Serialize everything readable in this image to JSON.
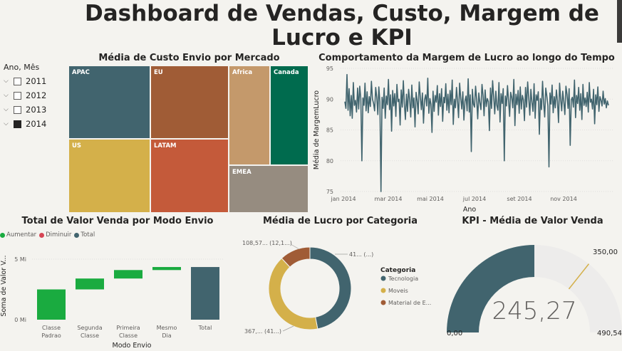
{
  "page_title": "Dashboard de Vendas, Custo, Margem de Lucro e KPI",
  "slicer": {
    "header": "Ano, Mês",
    "items": [
      {
        "label": "2011",
        "checked": false
      },
      {
        "label": "2012",
        "checked": false
      },
      {
        "label": "2013",
        "checked": false
      },
      {
        "label": "2014",
        "checked": true
      }
    ]
  },
  "treemap": {
    "title": "Média de Custo Envio por Mercado",
    "cells": [
      {
        "label": "APAC",
        "color": "#41646e"
      },
      {
        "label": "EU",
        "color": "#a05c36"
      },
      {
        "label": "Africa",
        "color": "#c4996b"
      },
      {
        "label": "Canada",
        "color": "#006b4e"
      },
      {
        "label": "US",
        "color": "#d4b04a"
      },
      {
        "label": "LATAM",
        "color": "#c45a3a"
      },
      {
        "label": "EMEA",
        "color": "#968c80"
      }
    ]
  },
  "line": {
    "title": "Comportamento da Margem de Lucro ao longo do Tempo",
    "ylabel": "Média de MargemLucro",
    "xlabel": "Ano",
    "color": "#41646e"
  },
  "waterfall": {
    "title": "Total de Valor Venda por Modo Envio",
    "ylabel": "Soma de Valor V...",
    "xlabel": "Modo Envio",
    "legend": [
      {
        "label": "Aumentar",
        "color": "#1aab40"
      },
      {
        "label": "Diminuir",
        "color": "#d64554"
      },
      {
        "label": "Total",
        "color": "#41646e"
      }
    ]
  },
  "donut": {
    "title": "Média de Lucro por Categoria",
    "legend_title": "Categoria",
    "label_tecnologia": "41... (...)",
    "label_moveis": "367,... (41...)",
    "label_material": "108,57... (12,1...)"
  },
  "gauge": {
    "title": "KPI - Média de Valor Venda",
    "value_label": "245,27",
    "min_label": "0,00",
    "max_label": "490,54",
    "target_label": "350,00",
    "fill_color": "#41646e",
    "track_color": "#edeceb",
    "target_color": "#d4b04a"
  },
  "chart_data": [
    {
      "type": "treemap",
      "title": "Média de Custo Envio por Mercado",
      "categories": [
        "APAC",
        "EU",
        "Africa",
        "Canada",
        "US",
        "LATAM",
        "EMEA"
      ],
      "values": [
        31,
        31,
        19,
        16,
        31,
        31,
        14
      ]
    },
    {
      "type": "line",
      "title": "Comportamento da Margem de Lucro ao longo do Tempo",
      "xlabel": "Ano",
      "ylabel": "Média de MargemLucro",
      "x_range": [
        "2014-01-01",
        "2014-12-31"
      ],
      "x_ticks": [
        "jan 2014",
        "mar 2014",
        "mai 2014",
        "jul 2014",
        "set 2014",
        "nov 2014"
      ],
      "y_ticks": [
        75,
        80,
        85,
        90,
        95
      ],
      "ylim": [
        75,
        95
      ],
      "series": [
        {
          "values": [
            89.6,
            88.5,
            94.0,
            88.2,
            91.7,
            87.3,
            90.6,
            86.9,
            92.7,
            89.0,
            89.8,
            87.9,
            91.8,
            88.4,
            92.1,
            90.1,
            80.0,
            90.2,
            89.0,
            92.6,
            88.1,
            91.2,
            87.8,
            90.4,
            88.8,
            92.9,
            90.0,
            89.3,
            88.1,
            91.9,
            90.3,
            87.5,
            92.0,
            89.5,
            75.0,
            90.3,
            88.5,
            91.8,
            86.9,
            90.5,
            89.1,
            93.2,
            88.3,
            90.7,
            84.8,
            91.4,
            88.9,
            90.9,
            87.2,
            92.4,
            89.6,
            90.0,
            85.8,
            91.5,
            88.7,
            93.0,
            89.3,
            86.7,
            90.8,
            88.0,
            91.6,
            89.9,
            87.1,
            92.3,
            88.6,
            90.2,
            85.5,
            91.1,
            89.7,
            87.6,
            92.8,
            90.4,
            88.3,
            91.0,
            86.1,
            89.9,
            90.7,
            88.9,
            93.4,
            87.7,
            90.1,
            89.2,
            84.6,
            91.3,
            88.0,
            90.6,
            89.5,
            92.2,
            87.4,
            90.9,
            88.8,
            91.7,
            86.4,
            90.3,
            89.4,
            92.5,
            88.2,
            90.8,
            87.8,
            91.4,
            89.1,
            93.1,
            85.9,
            90.0,
            88.6,
            91.9,
            89.8,
            87.0,
            92.6,
            90.2,
            88.4,
            91.2,
            86.6,
            89.7,
            90.5,
            88.1,
            93.3,
            87.9,
            90.7,
            81.5,
            91.6,
            89.2,
            88.7,
            92.1,
            90.0,
            86.8,
            91.0,
            89.4,
            88.3,
            92.4,
            90.6,
            87.3,
            91.5,
            88.8,
            90.1,
            89.6,
            84.9,
            91.8,
            88.5,
            93.0,
            90.4,
            87.6,
            91.3,
            89.0,
            88.2,
            92.7,
            86.3,
            90.9,
            89.3,
            91.7,
            80.0,
            90.5,
            88.9,
            92.2,
            89.7,
            87.2,
            91.1,
            90.3,
            88.6,
            93.2,
            85.7,
            90.8,
            89.1,
            91.4,
            87.7,
            92.0,
            88.4,
            90.6,
            89.9,
            86.5,
            91.9,
            88.7,
            92.8,
            90.2,
            87.4,
            91.6,
            89.5,
            88.0,
            92.5,
            86.9,
            90.7,
            89.8,
            91.2,
            84.3,
            90.1,
            88.3,
            92.9,
            89.4,
            87.1,
            91.8,
            90.5,
            88.9,
            79.0,
            91.0,
            89.2,
            92.3,
            87.8,
            90.4,
            88.6,
            91.5,
            89.7,
            86.2,
            92.6,
            90.0,
            88.1,
            91.3,
            89.6,
            87.5,
            92.1,
            90.8,
            88.5,
            91.7,
            82.5,
            89.9,
            90.3,
            88.7,
            93.1,
            87.0,
            90.6,
            89.3,
            91.9,
            88.2,
            90.9,
            86.7,
            92.4,
            89.0,
            90.2,
            88.8,
            91.1,
            87.9,
            92.7,
            89.5,
            90.0,
            88.4,
            91.6,
            86.0,
            90.7,
            89.1,
            92.0,
            88.0,
            90.4,
            89.8,
            88.9,
            91.3,
            89.2,
            90.1,
            88.6,
            89.7,
            89.0
          ]
        }
      ]
    },
    {
      "type": "waterfall",
      "title": "Total de Valor Venda por Modo Envio",
      "xlabel": "Modo Envio",
      "ylabel": "Soma de Valor V...",
      "categories": [
        "Classe Padrao",
        "Segunda Classe",
        "Primeira Classe",
        "Mesmo Dia",
        "Total"
      ],
      "values": [
        2.5,
        0.9,
        0.7,
        0.25,
        4.35
      ],
      "kinds": [
        "increase",
        "increase",
        "increase",
        "increase",
        "total"
      ],
      "y_ticks": [
        "0 Mi",
        "5 Mi"
      ],
      "ylim": [
        0,
        5.2
      ]
    },
    {
      "type": "pie",
      "donut": true,
      "title": "Média de Lucro por Categoria",
      "categories": [
        "Tecnologia",
        "Moveis",
        "Material de E..."
      ],
      "values": [
        47,
        41,
        12
      ],
      "colors": [
        "#41646e",
        "#d4b04a",
        "#a05c36"
      ]
    },
    {
      "type": "gauge",
      "title": "KPI - Média de Valor Venda",
      "value": 245.27,
      "min": 0.0,
      "max": 490.54,
      "target": 350.0
    }
  ]
}
